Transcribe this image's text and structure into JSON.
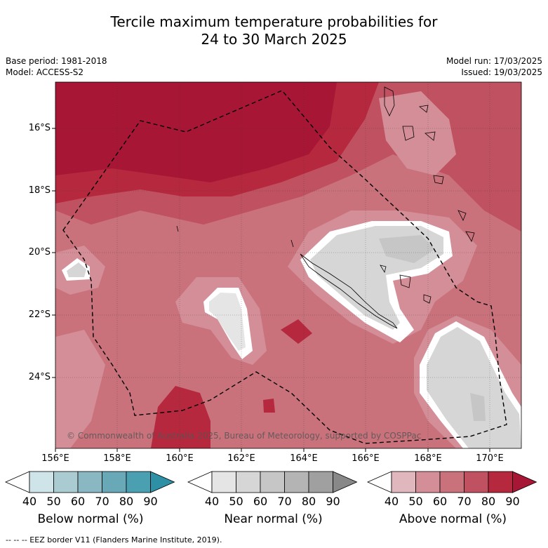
{
  "title": {
    "line1": "Tercile maximum temperature probabilities for",
    "line2": "24 to 30 March 2025"
  },
  "meta_left": {
    "base_period": "Base period: 1981-2018",
    "model": "Model: ACCESS-S2"
  },
  "meta_right": {
    "model_run": "Model run: 17/03/2025",
    "issued": "Issued: 19/03/2025"
  },
  "map": {
    "lat_labels": [
      "16°S",
      "18°S",
      "20°S",
      "22°S",
      "24°S"
    ],
    "lon_labels": [
      "156°E",
      "158°E",
      "160°E",
      "162°E",
      "164°E",
      "166°E",
      "168°E",
      "170°E"
    ],
    "copyright": "© Commonwealth of Australia 2025, Bureau of Meteorology, supported by COSPPac"
  },
  "colorbars": [
    {
      "label": "Below normal (%)",
      "ticks": [
        "40",
        "50",
        "60",
        "70",
        "80",
        "90"
      ],
      "colors": [
        "#cfe4e8",
        "#aacbd1",
        "#8ab8c2",
        "#68a8b7",
        "#4a9fb1",
        "#2e90a5"
      ]
    },
    {
      "label": "Near normal (%)",
      "ticks": [
        "40",
        "50",
        "60",
        "70",
        "80",
        "90"
      ],
      "colors": [
        "#e5e5e5",
        "#d6d6d6",
        "#c6c6c6",
        "#b4b4b4",
        "#a0a0a0",
        "#888888"
      ]
    },
    {
      "label": "Above normal (%)",
      "ticks": [
        "40",
        "50",
        "60",
        "70",
        "80",
        "90"
      ],
      "colors": [
        "#e0b7bd",
        "#d48e98",
        "#c9727c",
        "#bf5160",
        "#b5283e",
        "#a81636"
      ]
    }
  ],
  "footer": "--  --  -- EEZ border V11 (Flanders Marine Institute, 2019)."
}
